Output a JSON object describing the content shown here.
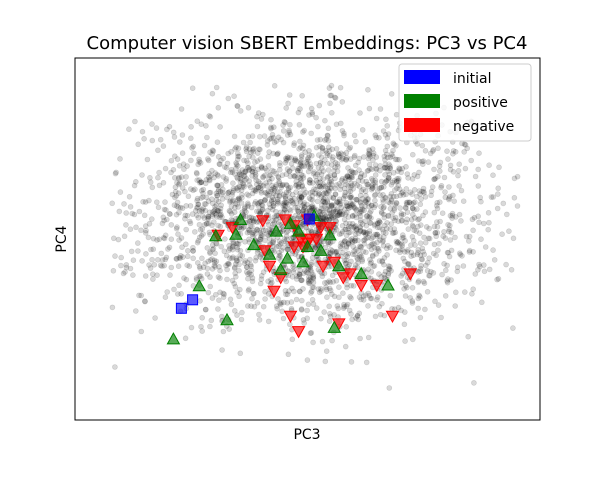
{
  "chart_data": {
    "type": "scatter",
    "title": "Computer vision SBERT Embeddings: PC3 vs PC4",
    "xlabel": "PC3",
    "ylabel": "PC4",
    "xlim": [
      -0.52,
      0.52
    ],
    "ylim": [
      -0.47,
      0.47
    ],
    "ticks_shown": false,
    "grid": false,
    "legend_position": "upper-right",
    "background_cloud": {
      "color": "#000000",
      "opacity": 0.15,
      "approx_count": 2600,
      "center": [
        0.0,
        0.06
      ],
      "spread": [
        0.19,
        0.13
      ],
      "extent_x": [
        -0.45,
        0.47
      ],
      "extent_y": [
        -0.39,
        0.4
      ]
    },
    "series": [
      {
        "name": "initial",
        "marker": "square",
        "color": "#0000ff",
        "points": [
          [
            -0.282,
            -0.18
          ],
          [
            -0.257,
            -0.158
          ],
          [
            0.004,
            0.052
          ]
        ]
      },
      {
        "name": "positive",
        "marker": "triangle-up",
        "color": "#008000",
        "points": [
          [
            -0.242,
            -0.122
          ],
          [
            -0.205,
            0.008
          ],
          [
            -0.16,
            0.012
          ],
          [
            -0.15,
            0.05
          ],
          [
            -0.12,
            -0.015
          ],
          [
            -0.085,
            -0.04
          ],
          [
            -0.07,
            0.02
          ],
          [
            -0.06,
            -0.08
          ],
          [
            -0.045,
            -0.05
          ],
          [
            -0.038,
            0.04
          ],
          [
            -0.02,
            0.02
          ],
          [
            -0.01,
            -0.06
          ],
          [
            0.0,
            -0.02
          ],
          [
            0.015,
            0.06
          ],
          [
            0.03,
            -0.03
          ],
          [
            0.05,
            0.01
          ],
          [
            0.07,
            -0.07
          ],
          [
            0.12,
            -0.09
          ],
          [
            0.18,
            -0.12
          ],
          [
            -0.18,
            -0.21
          ],
          [
            -0.3,
            -0.26
          ],
          [
            0.06,
            -0.23
          ]
        ]
      },
      {
        "name": "negative",
        "marker": "triangle-down",
        "color": "#ff0000",
        "points": [
          [
            -0.2,
            0.01
          ],
          [
            -0.168,
            0.03
          ],
          [
            -0.1,
            0.048
          ],
          [
            -0.05,
            0.05
          ],
          [
            -0.095,
            -0.03
          ],
          [
            -0.085,
            -0.07
          ],
          [
            -0.075,
            -0.135
          ],
          [
            -0.06,
            -0.1
          ],
          [
            -0.03,
            -0.02
          ],
          [
            -0.01,
            -0.02
          ],
          [
            0.005,
            0.0
          ],
          [
            0.02,
            0.0
          ],
          [
            0.03,
            0.03
          ],
          [
            0.05,
            0.03
          ],
          [
            0.035,
            -0.07
          ],
          [
            0.06,
            -0.06
          ],
          [
            0.08,
            -0.1
          ],
          [
            0.095,
            -0.09
          ],
          [
            0.12,
            -0.12
          ],
          [
            0.155,
            -0.12
          ],
          [
            0.23,
            -0.09
          ],
          [
            0.19,
            -0.2
          ],
          [
            -0.038,
            -0.2
          ],
          [
            -0.02,
            -0.24
          ],
          [
            0.07,
            -0.22
          ],
          [
            0.0,
            0.05
          ],
          [
            0.0,
            -0.01
          ],
          [
            -0.03,
            0.035
          ],
          [
            -0.015,
            0.0
          ]
        ]
      }
    ]
  }
}
